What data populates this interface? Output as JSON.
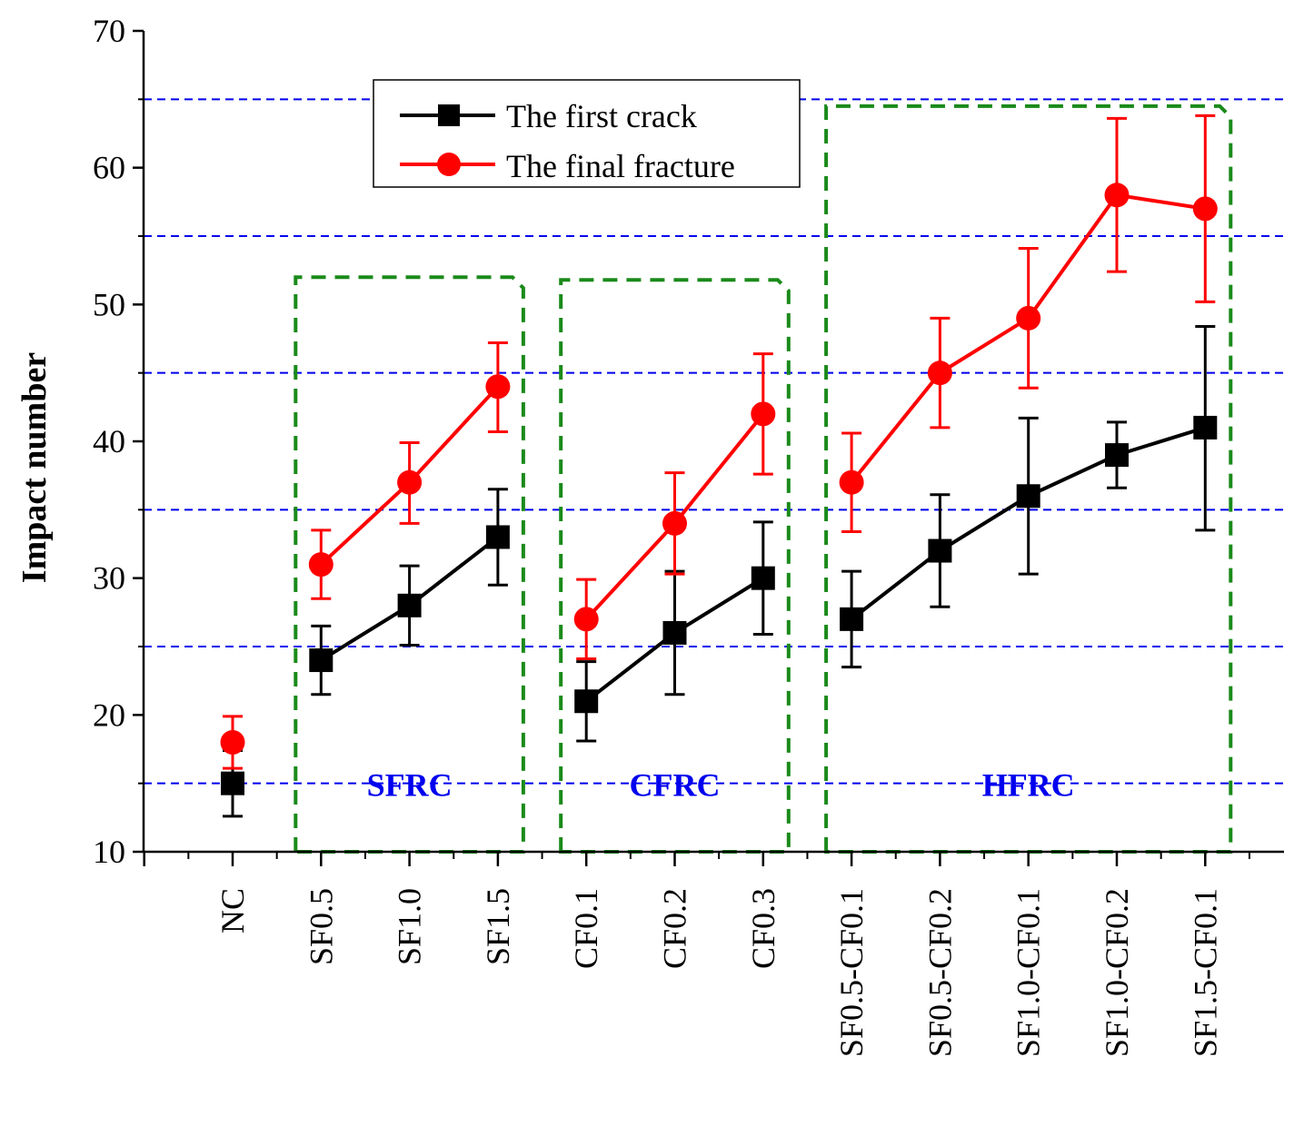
{
  "chart_data": {
    "type": "line",
    "title": "",
    "xlabel": "",
    "ylabel": "Impact number",
    "ylim": [
      10,
      70
    ],
    "yticks": [
      10,
      20,
      30,
      40,
      50,
      60,
      70
    ],
    "categories": [
      "NC",
      "SF0.5",
      "SF1.0",
      "SF1.5",
      "CF0.1",
      "CF0.2",
      "CF0.3",
      "SF0.5-CF0.1",
      "SF0.5-CF0.2",
      "SF1.0-CF0.1",
      "SF1.0-CF0.2",
      "SF1.5-CF0.1"
    ],
    "reference_lines": [
      15,
      25,
      35,
      45,
      55,
      65
    ],
    "legend_position": "top-center",
    "series": [
      {
        "name": "The first crack",
        "color": "#000000",
        "marker": "square",
        "values": [
          15,
          24,
          28,
          33,
          21,
          26,
          30,
          27,
          32,
          36,
          39,
          41
        ],
        "error_low": [
          12.6,
          21.5,
          25.1,
          29.5,
          18.1,
          21.5,
          25.9,
          23.5,
          27.9,
          30.3,
          36.6,
          33.5
        ],
        "error_high": [
          17.4,
          26.5,
          30.9,
          36.5,
          23.9,
          30.5,
          34.1,
          30.5,
          36.1,
          41.7,
          41.4,
          48.4
        ]
      },
      {
        "name": "The final fracture",
        "color": "#ff0000",
        "marker": "circle",
        "values": [
          18,
          31,
          37,
          44,
          27,
          34,
          42,
          37,
          45,
          49,
          58,
          57
        ],
        "error_low": [
          16.1,
          28.5,
          34.0,
          40.7,
          24.1,
          30.3,
          37.6,
          33.4,
          41.0,
          43.9,
          52.4,
          50.2
        ],
        "error_high": [
          19.9,
          33.5,
          39.9,
          47.2,
          29.9,
          37.7,
          46.4,
          40.6,
          49.0,
          54.1,
          63.6,
          63.8
        ]
      }
    ],
    "groups": [
      {
        "label": "SFRC",
        "start": 1,
        "end": 3,
        "top": 52
      },
      {
        "label": "CFRC",
        "start": 4,
        "end": 6,
        "top": 51.8
      },
      {
        "label": "HFRC",
        "start": 7,
        "end": 11,
        "top": 64.5
      }
    ]
  }
}
